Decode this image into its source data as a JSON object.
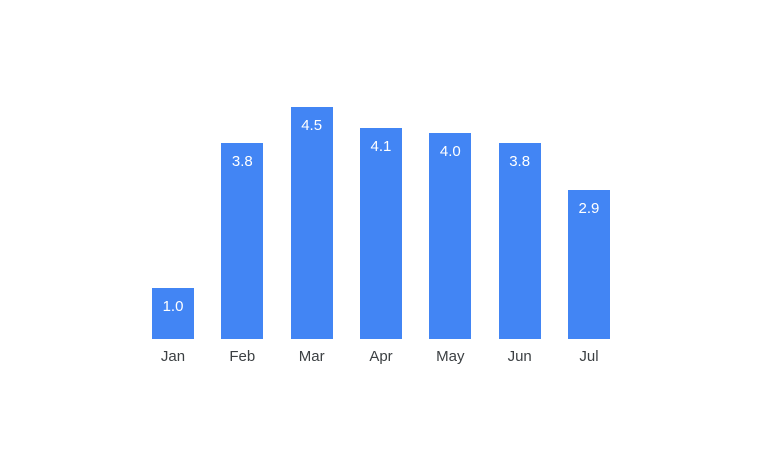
{
  "page": {
    "background": "#ffffff"
  },
  "chart_data": {
    "type": "bar",
    "categories": [
      "Jan",
      "Feb",
      "Mar",
      "Apr",
      "May",
      "Jun",
      "Jul"
    ],
    "values": [
      1.0,
      3.8,
      4.5,
      4.1,
      4.0,
      3.8,
      2.9
    ],
    "value_labels": [
      "1.0",
      "3.8",
      "4.5",
      "4.1",
      "4.0",
      "3.8",
      "2.9"
    ],
    "ylim": [
      0,
      5
    ],
    "grid": false,
    "legend": "none",
    "orientation": "vertical",
    "value_label_position": "inside-top",
    "colors": {
      "bar": "#4285f4",
      "value_label": "#ffffff",
      "axis_label": "#3c4043",
      "background": "#ffffff"
    }
  }
}
